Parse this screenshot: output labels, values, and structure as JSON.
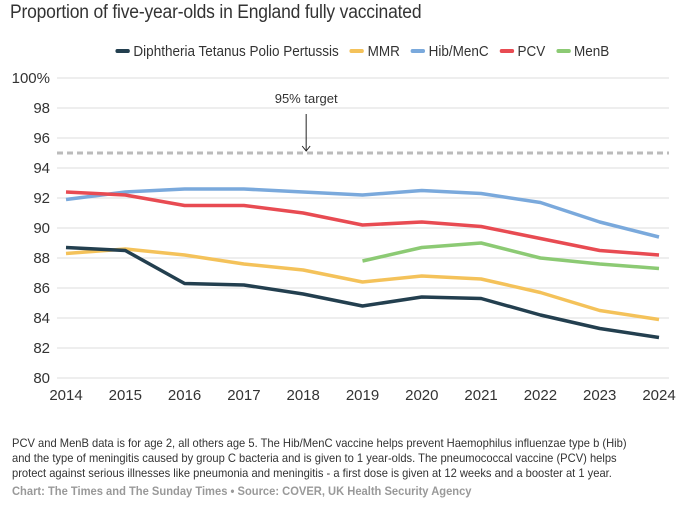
{
  "header": {
    "title": "Proportion of five-year-olds in England fully vaccinated"
  },
  "chart_data": {
    "type": "line",
    "title": "Proportion of five-year-olds in England fully vaccinated",
    "xlabel": "",
    "ylabel": "",
    "x": [
      2014,
      2015,
      2016,
      2017,
      2018,
      2019,
      2020,
      2021,
      2022,
      2023,
      2024
    ],
    "x_tick_labels": [
      "2014",
      "2015",
      "2016",
      "2017",
      "2018",
      "2019",
      "2020",
      "2021",
      "2022",
      "2023",
      "2024"
    ],
    "ylim": [
      80,
      100
    ],
    "y_ticks": [
      80,
      82,
      84,
      86,
      88,
      90,
      92,
      94,
      96,
      98,
      100
    ],
    "y_tick_labels": [
      "80",
      "82",
      "84",
      "86",
      "88",
      "90",
      "92",
      "94",
      "96",
      "98",
      "100%"
    ],
    "grid": true,
    "legend_position": "top-center",
    "series": [
      {
        "name": "Diphtheria Tetanus Polio Pertussis",
        "color": "#233f4f",
        "values": [
          88.7,
          88.5,
          86.3,
          86.2,
          85.6,
          84.8,
          85.4,
          85.3,
          84.2,
          83.3,
          82.7
        ]
      },
      {
        "name": "MMR",
        "color": "#f4c25a",
        "values": [
          88.3,
          88.6,
          88.2,
          87.6,
          87.2,
          86.4,
          86.8,
          86.6,
          85.7,
          84.5,
          83.9
        ]
      },
      {
        "name": "Hib/MenC",
        "color": "#7aa9dc",
        "values": [
          91.9,
          92.4,
          92.6,
          92.6,
          92.4,
          92.2,
          92.5,
          92.3,
          91.7,
          90.4,
          89.4
        ]
      },
      {
        "name": "PCV",
        "color": "#e84b52",
        "values": [
          92.4,
          92.2,
          91.5,
          91.5,
          91.0,
          90.2,
          90.4,
          90.1,
          89.3,
          88.5,
          88.2
        ]
      },
      {
        "name": "MenB",
        "color": "#8cca74",
        "values": [
          null,
          null,
          null,
          null,
          null,
          87.8,
          88.7,
          89.0,
          88.0,
          87.6,
          87.3
        ]
      }
    ],
    "reference_line": {
      "value": 95,
      "color": "#bbbbbb",
      "style": "dashed"
    },
    "annotations": [
      {
        "text": "95% target",
        "x": 2018.05,
        "y": 95,
        "arrow": true
      }
    ]
  },
  "notes": {
    "lines": [
      "PCV and MenB data is for age 2, all others age 5. The Hib/MenC vaccine helps prevent Haemophilus influenzae type b (Hib)",
      "and the type of meningitis caused by group C bacteria and is given to 1 year-olds. The pneumococcal vaccine (PCV) helps",
      "protect against serious illnesses like pneumonia and meningitis - a first dose is given at 12 weeks and a booster at 1 year."
    ],
    "credit": "Chart: The Times and The Sunday Times • Source: COVER, UK Health Security Agency"
  }
}
